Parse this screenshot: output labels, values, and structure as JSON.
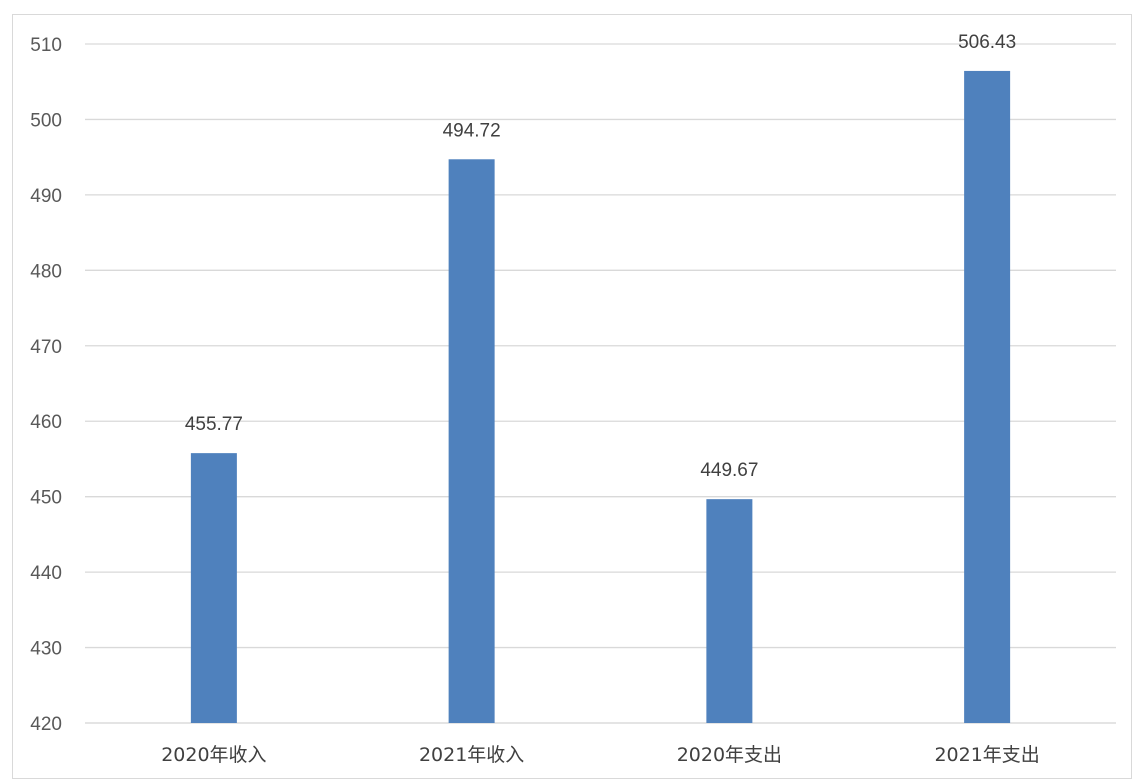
{
  "chart_data": {
    "type": "bar",
    "title": "",
    "xlabel": "",
    "ylabel": "",
    "categories": [
      "2020年收入",
      "2021年收入",
      "2020年支出",
      "2021年支出"
    ],
    "values": [
      455.77,
      494.72,
      449.67,
      506.43
    ],
    "data_labels": [
      "455.77",
      "494.72",
      "449.67",
      "506.43"
    ],
    "ylim": [
      420,
      510
    ],
    "yticks": [
      420,
      430,
      440,
      450,
      460,
      470,
      480,
      490,
      500,
      510
    ],
    "grid": true,
    "legend": "none",
    "bar_color": "#4f81bd",
    "grid_color": "#d9d9d9"
  }
}
